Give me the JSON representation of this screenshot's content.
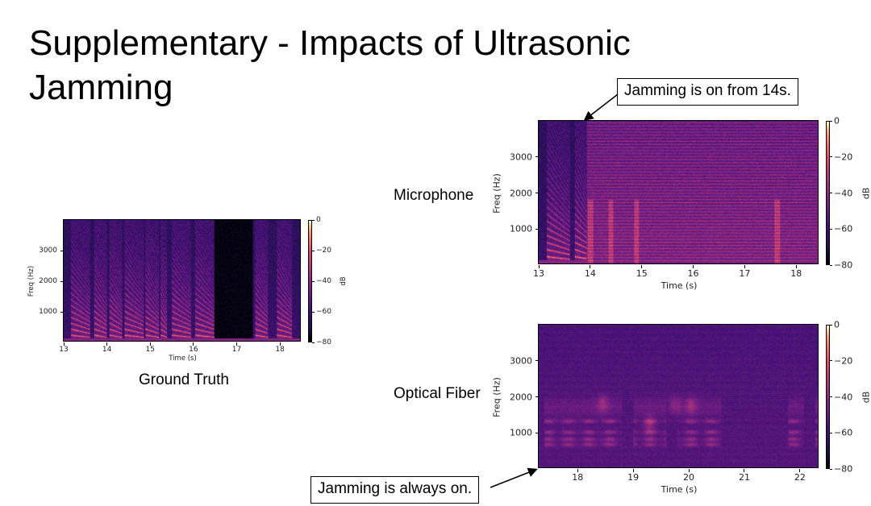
{
  "slide": {
    "title": "Supplementary - Impacts of Ultrasonic Jamming",
    "captions": {
      "ground_truth": "Ground Truth",
      "microphone": "Microphone",
      "optical_fiber": "Optical Fiber"
    },
    "callouts": {
      "mic": "Jamming is on from 14s.",
      "fiber": "Jamming is always on."
    }
  },
  "chart_data": [
    {
      "id": "gt",
      "type": "heatmap",
      "title": "Ground Truth",
      "xlabel": "Time (s)",
      "ylabel": "Freq (Hz)",
      "xlim": [
        13,
        18.5
      ],
      "ylim": [
        0,
        4000
      ],
      "xticks": [
        "13",
        "14",
        "15",
        "16",
        "17",
        "18"
      ],
      "yticks": [
        "1000",
        "2000",
        "3000"
      ],
      "colorbar": {
        "label": "dB",
        "range": [
          -80,
          0
        ],
        "ticks": [
          "0",
          "−20",
          "−40",
          "−60",
          "−80"
        ]
      },
      "colormap": "magma",
      "silence_interval_s": [
        16.5,
        17.4
      ]
    },
    {
      "id": "mic",
      "type": "heatmap",
      "title": "Microphone",
      "xlabel": "Time (s)",
      "ylabel": "Freq (Hz)",
      "xlim": [
        13,
        18.45
      ],
      "ylim": [
        0,
        4000
      ],
      "xticks": [
        "13",
        "14",
        "15",
        "16",
        "17",
        "18"
      ],
      "yticks": [
        "1000",
        "2000",
        "3000"
      ],
      "colorbar": {
        "label": "dB",
        "range": [
          -80,
          0
        ],
        "ticks": [
          "0",
          "−20",
          "−40",
          "−60",
          "−80"
        ]
      },
      "colormap": "magma",
      "jamming_start_s": 14
    },
    {
      "id": "fiber",
      "type": "heatmap",
      "title": "Optical Fiber",
      "xlabel": "Time (s)",
      "ylabel": "Freq (Hz)",
      "xlim": [
        17.3,
        22.35
      ],
      "ylim": [
        0,
        4000
      ],
      "xticks": [
        "18",
        "19",
        "20",
        "21",
        "22"
      ],
      "yticks": [
        "1000",
        "2000",
        "3000"
      ],
      "colorbar": {
        "label": "dB",
        "range": [
          -80,
          0
        ],
        "ticks": [
          "0",
          "−20",
          "−40",
          "−60",
          "−80"
        ]
      },
      "colormap": "magma",
      "jamming": "always on"
    }
  ]
}
